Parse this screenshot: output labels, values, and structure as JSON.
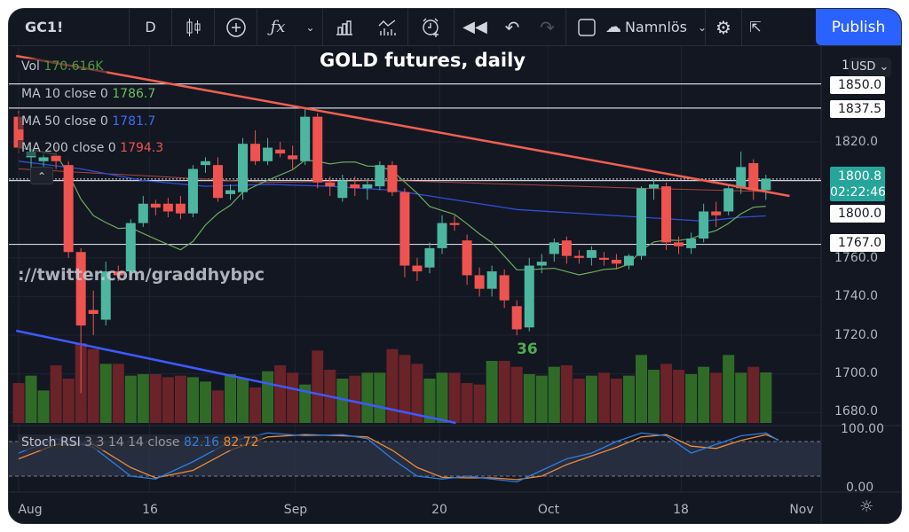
{
  "toolbar": {
    "symbol": "GC1!",
    "interval": "D",
    "layout_name": "Namnlös",
    "publish_label": "Publish",
    "icons": [
      "candles-icon",
      "add-compare-icon",
      "indicators-fx-icon",
      "chevron-down-icon",
      "bar-chart-icon",
      "templates-icon",
      "alert-icon",
      "replay-icon",
      "undo-icon",
      "redo-icon",
      "square-icon",
      "cloud-icon",
      "chevron-down-icon",
      "gear-icon",
      "fullscreen-icon"
    ]
  },
  "chart_title": "GOLD futures, daily",
  "legend": {
    "vol_label": "Vol",
    "vol_value": "170.616K",
    "ma10_label": "MA 10 close 0",
    "ma10_value": "1786.7",
    "ma50_label": "MA 50 close 0",
    "ma50_value": "1781.7",
    "ma200_label": "MA 200 close 0",
    "ma200_value": "1794.3"
  },
  "watermark": "://twitter.com/graddhybpc",
  "annotation": "36",
  "currency": "USD",
  "axis_partial": "1",
  "price_boxes": {
    "l1850": "1850.0",
    "l1837": "1837.5",
    "last": "1800.8",
    "countdown": "02:22:46",
    "l1800": "1800.0",
    "l1767": "1767.0"
  },
  "stoch": {
    "label": "Stoch RSI",
    "params": "3 3 14 14 close",
    "k_value": "82.16",
    "d_value": "82.72",
    "axis_top": "100.00",
    "axis_bottom": "0.00"
  },
  "colors": {
    "bg": "#131722",
    "up": "#4db6a0",
    "down": "#ef5350",
    "vol_up": "#2f6b27",
    "vol_down": "#6a2328",
    "ma10": "#6bab5c",
    "ma50": "#2f4fd6",
    "ma200": "#a8463f",
    "trend_red": "#f0604f",
    "trend_blue": "#3d5afe",
    "stoch_k": "#2f7de1",
    "stoch_d": "#e98b3a"
  },
  "chart_data": {
    "type": "candlestick",
    "title": "GOLD futures, daily",
    "symbol": "GC1!",
    "ylim": [
      1672,
      1868
    ],
    "y_ticks": [
      "1820.0",
      "1760.0",
      "1740.0",
      "1720.0",
      "1700.0",
      "1680.0"
    ],
    "y_tick_values": [
      1820,
      1760,
      1740,
      1720,
      1700,
      1680
    ],
    "x_ticks": [
      {
        "label": "Aug",
        "i": 0.9
      },
      {
        "label": "16",
        "i": 10.5
      },
      {
        "label": "Sep",
        "i": 22.2
      },
      {
        "label": "20",
        "i": 33.8
      },
      {
        "label": "Oct",
        "i": 42.5
      },
      {
        "label": "18",
        "i": 53.2
      },
      {
        "label": "Nov",
        "i": 62.9
      }
    ],
    "ohlc": [
      [
        1833,
        1836,
        1814,
        1817
      ],
      [
        1812,
        1816,
        1806,
        1815
      ],
      [
        1810,
        1814,
        1804,
        1812
      ],
      [
        1813,
        1818,
        1806,
        1810
      ],
      [
        1808,
        1810,
        1760,
        1763
      ],
      [
        1763,
        1765,
        1690,
        1725
      ],
      [
        1733,
        1743,
        1720,
        1731
      ],
      [
        1728,
        1758,
        1725,
        1753
      ],
      [
        1753,
        1756,
        1748,
        1751
      ],
      [
        1753,
        1780,
        1750,
        1778
      ],
      [
        1778,
        1792,
        1776,
        1788
      ],
      [
        1788,
        1790,
        1782,
        1786
      ],
      [
        1788,
        1791,
        1781,
        1784
      ],
      [
        1788,
        1792,
        1780,
        1783
      ],
      [
        1783,
        1808,
        1781,
        1806
      ],
      [
        1808,
        1812,
        1804,
        1810
      ],
      [
        1808,
        1812,
        1789,
        1791
      ],
      [
        1793,
        1798,
        1790,
        1795
      ],
      [
        1794,
        1822,
        1790,
        1819
      ],
      [
        1819,
        1826,
        1808,
        1810
      ],
      [
        1810,
        1822,
        1808,
        1817
      ],
      [
        1816,
        1820,
        1812,
        1814
      ],
      [
        1813,
        1818,
        1806,
        1811
      ],
      [
        1810,
        1837,
        1808,
        1833
      ],
      [
        1833,
        1835,
        1796,
        1799
      ],
      [
        1799,
        1802,
        1792,
        1797
      ],
      [
        1791,
        1803,
        1789,
        1800
      ],
      [
        1798,
        1802,
        1792,
        1796
      ],
      [
        1796,
        1801,
        1790,
        1798
      ],
      [
        1797,
        1810,
        1795,
        1808
      ],
      [
        1808,
        1810,
        1792,
        1794
      ],
      [
        1794,
        1796,
        1750,
        1756
      ],
      [
        1756,
        1760,
        1748,
        1753
      ],
      [
        1755,
        1768,
        1752,
        1765
      ],
      [
        1765,
        1782,
        1762,
        1778
      ],
      [
        1778,
        1782,
        1774,
        1777
      ],
      [
        1769,
        1772,
        1746,
        1751
      ],
      [
        1751,
        1755,
        1740,
        1744
      ],
      [
        1744,
        1756,
        1740,
        1753
      ],
      [
        1751,
        1754,
        1734,
        1738
      ],
      [
        1735,
        1738,
        1720,
        1723
      ],
      [
        1724,
        1760,
        1722,
        1756
      ],
      [
        1756,
        1762,
        1752,
        1758
      ],
      [
        1762,
        1770,
        1758,
        1768
      ],
      [
        1769,
        1771,
        1757,
        1761
      ],
      [
        1761,
        1764,
        1757,
        1760
      ],
      [
        1760,
        1766,
        1756,
        1764
      ],
      [
        1760,
        1763,
        1756,
        1759
      ],
      [
        1759,
        1762,
        1754,
        1757
      ],
      [
        1756,
        1762,
        1754,
        1761
      ],
      [
        1761,
        1797,
        1759,
        1796
      ],
      [
        1796,
        1801,
        1790,
        1798
      ],
      [
        1797,
        1799,
        1764,
        1768
      ],
      [
        1768,
        1771,
        1762,
        1766
      ],
      [
        1765,
        1773,
        1762,
        1770
      ],
      [
        1770,
        1788,
        1768,
        1784
      ],
      [
        1784,
        1789,
        1776,
        1782
      ],
      [
        1784,
        1798,
        1782,
        1796
      ],
      [
        1796,
        1815,
        1793,
        1807
      ],
      [
        1809,
        1811,
        1790,
        1795
      ],
      [
        1795,
        1803,
        1790,
        1801
      ]
    ],
    "volume_k": [
      135,
      160,
      110,
      195,
      150,
      270,
      250,
      200,
      200,
      160,
      165,
      165,
      155,
      160,
      155,
      140,
      110,
      165,
      150,
      120,
      175,
      195,
      170,
      130,
      245,
      180,
      150,
      160,
      170,
      170,
      250,
      230,
      200,
      150,
      170,
      170,
      135,
      130,
      210,
      210,
      190,
      165,
      160,
      190,
      195,
      150,
      160,
      170,
      150,
      160,
      230,
      180,
      200,
      180,
      165,
      190,
      170,
      230,
      170,
      190,
      171
    ],
    "ma50": [
      [
        0,
        1810
      ],
      [
        5,
        1806
      ],
      [
        10,
        1800
      ],
      [
        15,
        1797
      ],
      [
        20,
        1798
      ],
      [
        25,
        1797
      ],
      [
        30,
        1795
      ],
      [
        35,
        1790
      ],
      [
        40,
        1785
      ],
      [
        45,
        1783
      ],
      [
        50,
        1781
      ],
      [
        55,
        1779
      ],
      [
        58,
        1781
      ],
      [
        60,
        1781.7
      ]
    ],
    "ma200": [
      [
        0,
        1806
      ],
      [
        20,
        1799
      ],
      [
        30,
        1800
      ],
      [
        40,
        1798
      ],
      [
        50,
        1796
      ],
      [
        60,
        1794.3
      ]
    ],
    "trendlines": [
      {
        "color": "red",
        "from": [
          -0.2,
          1864.5
        ],
        "to": [
          61.9,
          1792
        ]
      },
      {
        "color": "blue",
        "from": [
          -0.2,
          1722.3
        ],
        "to": [
          35.1,
          1674.6
        ]
      }
    ],
    "horizontal_levels": [
      1850,
      1837.5,
      1800.0,
      1767.0
    ],
    "last_price": 1800.8,
    "stoch_rsi": {
      "bands": [
        80,
        20
      ],
      "ylim": [
        0,
        100
      ],
      "k": [
        [
          0,
          60
        ],
        [
          3,
          85
        ],
        [
          6,
          70
        ],
        [
          9,
          20
        ],
        [
          11,
          15
        ],
        [
          14,
          45
        ],
        [
          17,
          80
        ],
        [
          20,
          95
        ],
        [
          23,
          90
        ],
        [
          26,
          92
        ],
        [
          28,
          85
        ],
        [
          30,
          50
        ],
        [
          32,
          20
        ],
        [
          34,
          15
        ],
        [
          36,
          20
        ],
        [
          38,
          15
        ],
        [
          40,
          10
        ],
        [
          42,
          30
        ],
        [
          44,
          50
        ],
        [
          46,
          60
        ],
        [
          48,
          80
        ],
        [
          50,
          95
        ],
        [
          52,
          90
        ],
        [
          54,
          60
        ],
        [
          56,
          75
        ],
        [
          58,
          90
        ],
        [
          60,
          95
        ],
        [
          61,
          82
        ]
      ],
      "d": [
        [
          0,
          50
        ],
        [
          3,
          75
        ],
        [
          6,
          75
        ],
        [
          9,
          35
        ],
        [
          11,
          17
        ],
        [
          14,
          30
        ],
        [
          17,
          65
        ],
        [
          20,
          88
        ],
        [
          23,
          92
        ],
        [
          26,
          90
        ],
        [
          28,
          88
        ],
        [
          30,
          65
        ],
        [
          32,
          35
        ],
        [
          34,
          18
        ],
        [
          36,
          17
        ],
        [
          38,
          17
        ],
        [
          40,
          14
        ],
        [
          42,
          20
        ],
        [
          44,
          40
        ],
        [
          46,
          55
        ],
        [
          48,
          70
        ],
        [
          50,
          88
        ],
        [
          52,
          92
        ],
        [
          54,
          72
        ],
        [
          56,
          68
        ],
        [
          58,
          82
        ],
        [
          60,
          92
        ],
        [
          61,
          83
        ]
      ]
    }
  }
}
